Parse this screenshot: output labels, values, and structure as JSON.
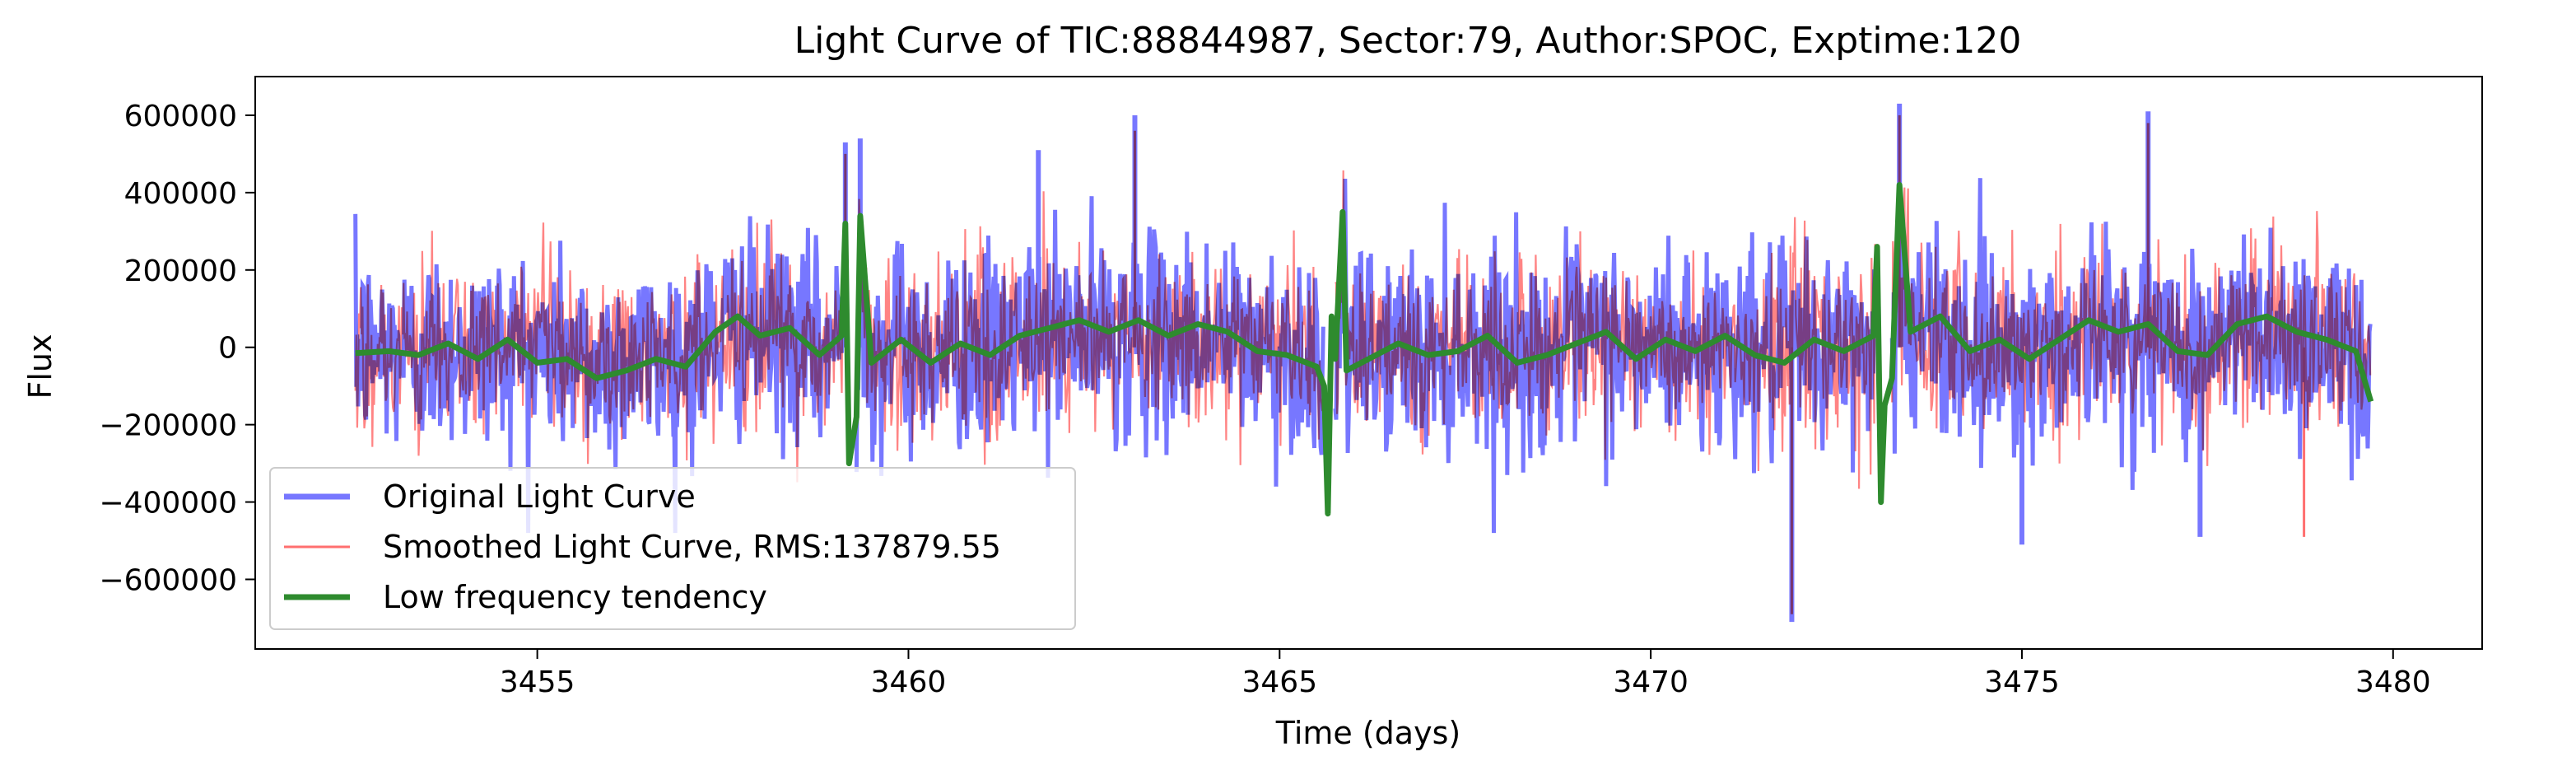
{
  "chart_data": {
    "type": "line",
    "title": "Light Curve of TIC:88844987, Sector:79, Author:SPOC, Exptime:120",
    "xlabel": "Time (days)",
    "ylabel": "Flux",
    "xlim": [
      3451.2,
      3481.2
    ],
    "ylim": [
      -780000,
      700000
    ],
    "xticks": [
      3455,
      3460,
      3465,
      3470,
      3475,
      3480
    ],
    "xtick_labels": [
      "3455",
      "3460",
      "3465",
      "3470",
      "3475",
      "3480"
    ],
    "yticks": [
      -600000,
      -400000,
      -200000,
      0,
      200000,
      400000,
      600000
    ],
    "ytick_labels": [
      "−600000",
      "−400000",
      "−200000",
      "0",
      "200000",
      "400000",
      "600000"
    ],
    "grid": false,
    "legend_position": "lower-left",
    "data_segments": [
      [
        3452.55,
        3459.15
      ],
      [
        3459.3,
        3465.6
      ],
      [
        3465.75,
        3473.1
      ],
      [
        3473.25,
        3479.7
      ]
    ],
    "series": [
      {
        "name": "Original Light Curve",
        "color": "#7777ff",
        "style": "noisy",
        "amplitude": 150000,
        "points": [
          [
            3452.55,
            0
          ],
          [
            3479.7,
            0
          ]
        ],
        "peaks": [
          [
            3459.15,
            530000
          ],
          [
            3459.35,
            540000
          ],
          [
            3461.75,
            510000
          ],
          [
            3463.05,
            600000
          ],
          [
            3471.9,
            -710000
          ],
          [
            3473.35,
            630000
          ],
          [
            3476.7,
            610000
          ],
          [
            3475.0,
            -510000
          ],
          [
            3477.4,
            -490000
          ]
        ]
      },
      {
        "name": "Smoothed Light Curve, RMS:137879.55",
        "color": "#ff6f6f",
        "style": "noisy",
        "amplitude": 135000,
        "points": [
          [
            3452.55,
            0
          ],
          [
            3479.7,
            0
          ]
        ],
        "peaks": [
          [
            3459.15,
            500000
          ],
          [
            3463.05,
            560000
          ],
          [
            3471.9,
            -690000
          ],
          [
            3473.35,
            600000
          ],
          [
            3476.7,
            580000
          ],
          [
            3478.8,
            -490000
          ]
        ]
      },
      {
        "name": "Low frequency tendency",
        "color": "#2e8b2e",
        "style": "line",
        "points": [
          [
            3452.55,
            -15000
          ],
          [
            3453.0,
            -10000
          ],
          [
            3453.4,
            -20000
          ],
          [
            3453.8,
            10000
          ],
          [
            3454.2,
            -30000
          ],
          [
            3454.6,
            20000
          ],
          [
            3455.0,
            -40000
          ],
          [
            3455.4,
            -30000
          ],
          [
            3455.8,
            -80000
          ],
          [
            3456.2,
            -60000
          ],
          [
            3456.6,
            -30000
          ],
          [
            3457.0,
            -50000
          ],
          [
            3457.4,
            40000
          ],
          [
            3457.7,
            80000
          ],
          [
            3458.0,
            30000
          ],
          [
            3458.4,
            50000
          ],
          [
            3458.8,
            -20000
          ],
          [
            3459.1,
            30000
          ],
          [
            3459.15,
            320000
          ],
          [
            3459.2,
            -300000
          ],
          [
            3459.3,
            -180000
          ],
          [
            3459.35,
            340000
          ],
          [
            3459.5,
            -40000
          ],
          [
            3459.9,
            20000
          ],
          [
            3460.3,
            -40000
          ],
          [
            3460.7,
            10000
          ],
          [
            3461.1,
            -20000
          ],
          [
            3461.5,
            30000
          ],
          [
            3461.9,
            50000
          ],
          [
            3462.3,
            70000
          ],
          [
            3462.7,
            40000
          ],
          [
            3463.1,
            70000
          ],
          [
            3463.5,
            30000
          ],
          [
            3463.9,
            60000
          ],
          [
            3464.3,
            40000
          ],
          [
            3464.7,
            -10000
          ],
          [
            3465.1,
            -20000
          ],
          [
            3465.5,
            -50000
          ],
          [
            3465.6,
            -100000
          ],
          [
            3465.65,
            -430000
          ],
          [
            3465.7,
            80000
          ],
          [
            3465.75,
            -30000
          ],
          [
            3465.85,
            350000
          ],
          [
            3465.9,
            -60000
          ],
          [
            3466.2,
            -30000
          ],
          [
            3466.6,
            10000
          ],
          [
            3467.0,
            -20000
          ],
          [
            3467.4,
            -10000
          ],
          [
            3467.8,
            30000
          ],
          [
            3468.2,
            -40000
          ],
          [
            3468.6,
            -20000
          ],
          [
            3469.0,
            10000
          ],
          [
            3469.4,
            40000
          ],
          [
            3469.8,
            -30000
          ],
          [
            3470.2,
            20000
          ],
          [
            3470.6,
            -10000
          ],
          [
            3471.0,
            30000
          ],
          [
            3471.4,
            -20000
          ],
          [
            3471.8,
            -40000
          ],
          [
            3472.2,
            20000
          ],
          [
            3472.6,
            -10000
          ],
          [
            3473.0,
            30000
          ],
          [
            3473.05,
            260000
          ],
          [
            3473.1,
            -400000
          ],
          [
            3473.15,
            -150000
          ],
          [
            3473.25,
            -80000
          ],
          [
            3473.35,
            420000
          ],
          [
            3473.5,
            40000
          ],
          [
            3473.9,
            80000
          ],
          [
            3474.3,
            -10000
          ],
          [
            3474.7,
            20000
          ],
          [
            3475.1,
            -30000
          ],
          [
            3475.5,
            20000
          ],
          [
            3475.9,
            70000
          ],
          [
            3476.3,
            40000
          ],
          [
            3476.7,
            60000
          ],
          [
            3477.1,
            -10000
          ],
          [
            3477.5,
            -20000
          ],
          [
            3477.9,
            60000
          ],
          [
            3478.3,
            80000
          ],
          [
            3478.7,
            40000
          ],
          [
            3479.1,
            20000
          ],
          [
            3479.5,
            -10000
          ],
          [
            3479.7,
            -140000
          ]
        ]
      }
    ]
  }
}
